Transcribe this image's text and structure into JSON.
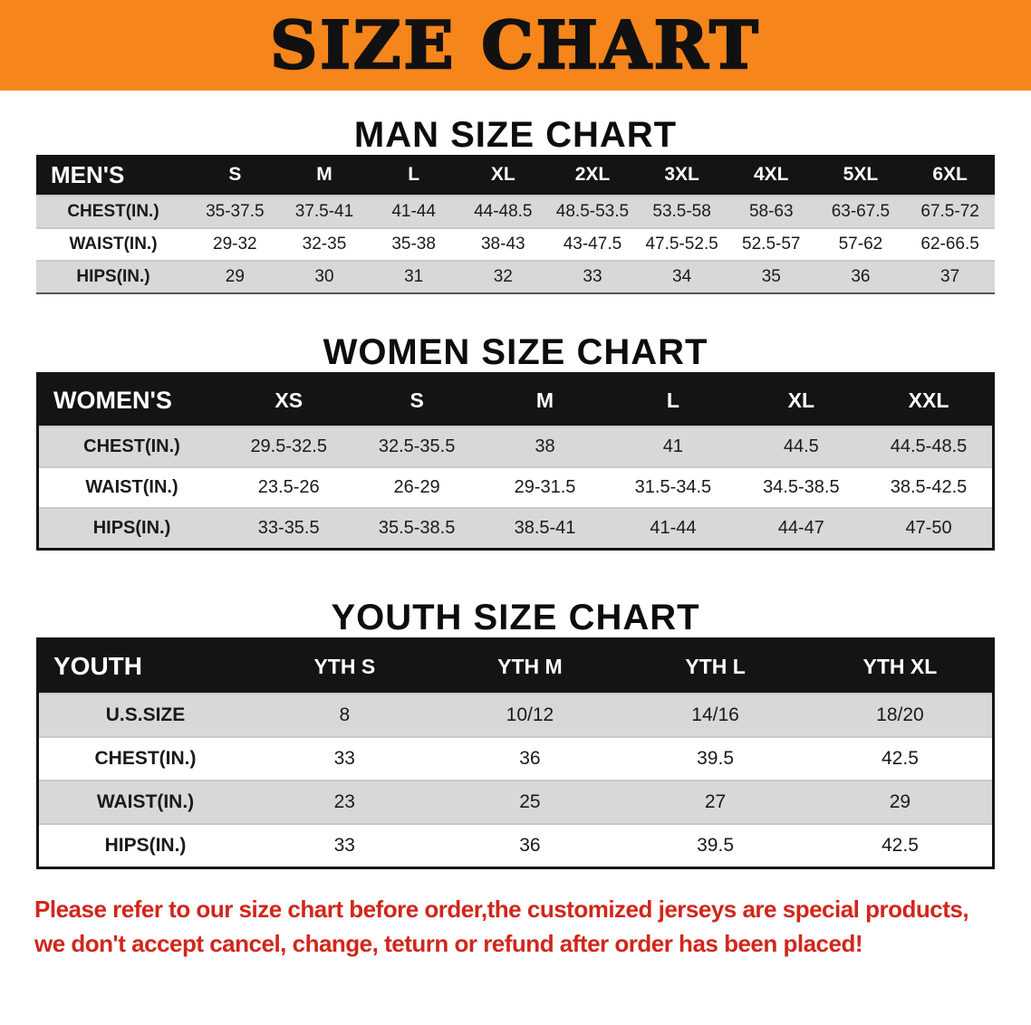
{
  "banner": {
    "title": "SIZE CHART",
    "background_color": "#F6851C"
  },
  "men": {
    "heading": "MAN SIZE CHART",
    "table": {
      "header": [
        "MEN'S",
        "S",
        "M",
        "L",
        "XL",
        "2XL",
        "3XL",
        "4XL",
        "5XL",
        "6XL"
      ],
      "rows": [
        [
          "CHEST(IN.)",
          "35-37.5",
          "37.5-41",
          "41-44",
          "44-48.5",
          "48.5-53.5",
          "53.5-58",
          "58-63",
          "63-67.5",
          "67.5-72"
        ],
        [
          "WAIST(IN.)",
          "29-32",
          "32-35",
          "35-38",
          "38-43",
          "43-47.5",
          "47.5-52.5",
          "52.5-57",
          "57-62",
          "62-66.5"
        ],
        [
          "HIPS(IN.)",
          "29",
          "30",
          "31",
          "32",
          "33",
          "34",
          "35",
          "36",
          "37"
        ]
      ]
    }
  },
  "women": {
    "heading": "WOMEN SIZE CHART",
    "table": {
      "header": [
        "WOMEN'S",
        "XS",
        "S",
        "M",
        "L",
        "XL",
        "XXL"
      ],
      "rows": [
        [
          "CHEST(IN.)",
          "29.5-32.5",
          "32.5-35.5",
          "38",
          "41",
          "44.5",
          "44.5-48.5"
        ],
        [
          "WAIST(IN.)",
          "23.5-26",
          "26-29",
          "29-31.5",
          "31.5-34.5",
          "34.5-38.5",
          "38.5-42.5"
        ],
        [
          "HIPS(IN.)",
          "33-35.5",
          "35.5-38.5",
          "38.5-41",
          "41-44",
          "44-47",
          "47-50"
        ]
      ]
    }
  },
  "youth": {
    "heading": "YOUTH SIZE CHART",
    "table": {
      "header": [
        "YOUTH",
        "YTH S",
        "YTH M",
        "YTH L",
        "YTH XL"
      ],
      "rows": [
        [
          "U.S.SIZE",
          "8",
          "10/12",
          "14/16",
          "18/20"
        ],
        [
          "CHEST(IN.)",
          "33",
          "36",
          "39.5",
          "42.5"
        ],
        [
          "WAIST(IN.)",
          "23",
          "25",
          "27",
          "29"
        ],
        [
          "HIPS(IN.)",
          "33",
          "36",
          "39.5",
          "42.5"
        ]
      ]
    }
  },
  "disclaimer": {
    "line1": "Please refer to our size chart before order,the customized jerseys are special products,",
    "line2": "we don't accept cancel, change, teturn or refund after order has been placed!",
    "text_color": "#d1261b"
  }
}
